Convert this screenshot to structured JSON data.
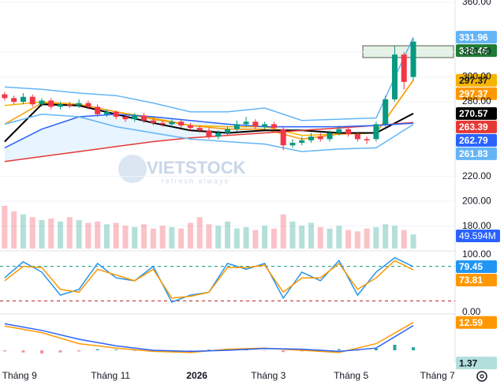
{
  "chart_data": [
    {
      "type": "candlestick",
      "xlim": [
        -0.5,
        48.5
      ],
      "xticks": [
        {
          "value": 1.6,
          "label": "Tháng 9"
        },
        {
          "value": 11.4,
          "label": "Tháng 11"
        },
        {
          "value": 20.7,
          "label": "2026"
        },
        {
          "value": 28.4,
          "label": "Tháng 3"
        },
        {
          "value": 37.3,
          "label": "Tháng 5"
        },
        {
          "value": 46.6,
          "label": "Tháng 7"
        }
      ],
      "ylim": [
        162,
        360
      ],
      "yticks": [
        {
          "value": 360,
          "label": "360.00"
        },
        {
          "value": 320,
          "label": "320.00"
        },
        {
          "value": 300,
          "label": "300.00"
        },
        {
          "value": 280,
          "label": "280.00"
        },
        {
          "value": 220,
          "label": "220.00"
        },
        {
          "value": 200,
          "label": "200.00"
        },
        {
          "value": 180,
          "label": "180.00"
        }
      ],
      "grid": true,
      "up_color": "#089981",
      "down_color": "#f23645",
      "last_color": "#1e7b34",
      "open": [
        286,
        283,
        280,
        284,
        278,
        281,
        276,
        278,
        277,
        279,
        276,
        270,
        272,
        268,
        266,
        269,
        265,
        263,
        262,
        264,
        261,
        259,
        257,
        252,
        255,
        258,
        262,
        264,
        260,
        262,
        258,
        245,
        247,
        249,
        252,
        250,
        255,
        258,
        254,
        250,
        250,
        262,
        282,
        318,
        300
      ],
      "high": [
        288,
        285,
        287,
        286,
        283,
        283,
        280,
        280,
        282,
        281,
        278,
        274,
        273,
        270,
        271,
        271,
        267,
        265,
        266,
        266,
        263,
        261,
        259,
        257,
        260,
        265,
        268,
        266,
        264,
        264,
        260,
        250,
        252,
        255,
        255,
        257,
        261,
        260,
        256,
        252,
        264,
        285,
        325,
        320,
        331
      ],
      "low": [
        281,
        278,
        278,
        276,
        276,
        274,
        274,
        275,
        275,
        274,
        268,
        268,
        266,
        264,
        264,
        263,
        261,
        260,
        260,
        259,
        257,
        255,
        250,
        250,
        253,
        256,
        260,
        258,
        258,
        257,
        241,
        243,
        245,
        247,
        248,
        248,
        253,
        252,
        248,
        246,
        248,
        260,
        280,
        290,
        297
      ],
      "close": [
        283,
        280,
        284,
        278,
        281,
        276,
        278,
        277,
        279,
        276,
        270,
        272,
        268,
        266,
        269,
        265,
        263,
        262,
        264,
        261,
        259,
        257,
        252,
        255,
        258,
        262,
        264,
        260,
        262,
        259,
        245,
        247,
        249,
        252,
        250,
        255,
        258,
        254,
        250,
        249,
        262,
        282,
        318,
        296,
        328.45
      ],
      "overlays": {
        "x": [
          0,
          4,
          8,
          12,
          16,
          20,
          24,
          28,
          32,
          36,
          40,
          44
        ],
        "fill_between": [
          4,
          5
        ],
        "fill_color": "rgba(33,150,243,0.10)",
        "series": [
          {
            "color": "#64b5f6",
            "values": [
              292,
              290,
              287,
              285,
              279,
              272,
              272,
              275,
              265,
              266,
              267,
              331.96
            ],
            "badge": true
          },
          {
            "color": "#f5b400",
            "values": [
              277,
              280,
              278,
              272,
              267,
              261,
              260,
              260,
              253,
              254,
              255,
              297.37
            ],
            "badge": true
          },
          {
            "color": "#ff9800",
            "values": [
              262,
              279,
              278,
              272,
              266,
              261,
              258,
              258,
              250,
              254,
              255,
              297.37
            ],
            "badge": true
          },
          {
            "color": "#000000",
            "values": [
              248,
              278,
              277,
              270,
              263,
              257,
              255,
              257,
              257,
              255,
              255,
              270.57
            ],
            "badge": true
          },
          {
            "color": "#e53935",
            "values": [
              232,
              236,
              240,
              244,
              248,
              251,
              253,
              255,
              257,
              259,
              261,
              263.39
            ],
            "badge": true
          },
          {
            "color": "#2962ff",
            "values": [
              243,
              258,
              268,
              270,
              268,
              265,
              262,
              260,
              260,
              260,
              261,
              262.79
            ],
            "badge": true
          },
          {
            "color": "#64b5f6",
            "values": [
              262,
              270,
              268,
              260,
              255,
              250,
              248,
              246,
              240,
              242,
              243,
              261.83
            ],
            "badge": true
          }
        ]
      },
      "volume": {
        "ylim": [
          0,
          180
        ],
        "color": "#2962ff",
        "values": [
          150,
          130,
          120,
          110,
          100,
          105,
          95,
          110,
          100,
          90,
          95,
          85,
          90,
          80,
          75,
          85,
          70,
          80,
          75,
          70,
          90,
          110,
          85,
          80,
          95,
          70,
          75,
          65,
          80,
          70,
          120,
          95,
          80,
          90,
          75,
          70,
          80,
          65,
          60,
          70,
          75,
          85,
          80,
          65,
          49.594
        ],
        "value_labels": [
          null,
          null,
          null,
          null,
          null,
          null,
          null,
          null,
          null,
          null,
          null,
          null,
          null,
          null,
          null,
          null,
          null,
          null,
          null,
          null,
          null,
          null,
          null,
          null,
          null,
          null,
          null,
          null,
          null,
          null,
          null,
          null,
          null,
          null,
          null,
          null,
          null,
          null,
          null,
          null,
          null,
          null,
          null,
          null,
          "49.594M"
        ]
      },
      "watermark": "VIETSTOCK",
      "watermark_sub": "refresh always"
    },
    {
      "type": "line",
      "ylim": [
        0,
        100
      ],
      "yticks": [
        {
          "value": 100,
          "label": "100.00"
        },
        {
          "value": 0,
          "label": "0.00"
        }
      ],
      "levels": [
        80,
        20
      ],
      "level_colors": [
        "#089981",
        "#b71c1c"
      ],
      "x": [
        0,
        2,
        4,
        6,
        8,
        10,
        12,
        14,
        16,
        18,
        20,
        22,
        24,
        26,
        28,
        30,
        32,
        34,
        36,
        38,
        40,
        42,
        44
      ],
      "series": [
        {
          "color": "#2196f3",
          "values": [
            60,
            88,
            70,
            30,
            40,
            85,
            60,
            55,
            80,
            18,
            30,
            35,
            85,
            75,
            85,
            25,
            70,
            55,
            90,
            30,
            70,
            95,
            79.45
          ],
          "badge": true
        },
        {
          "color": "#ff9800",
          "values": [
            55,
            80,
            78,
            40,
            35,
            75,
            65,
            55,
            75,
            25,
            28,
            35,
            78,
            78,
            82,
            35,
            60,
            60,
            85,
            40,
            60,
            90,
            73.81
          ],
          "badge": true
        }
      ]
    },
    {
      "type": "line",
      "ylim": [
        -5,
        15
      ],
      "x": [
        0,
        4,
        8,
        12,
        16,
        20,
        24,
        28,
        32,
        36,
        40,
        44
      ],
      "series": [
        {
          "color": "#ff9800",
          "values": [
            11,
            8,
            3,
            1,
            -0.5,
            -1,
            0.5,
            1,
            0,
            -1,
            3,
            12.59
          ],
          "badge": true
        },
        {
          "color": "#2962ff",
          "values": [
            12,
            9,
            5,
            2,
            0,
            -0.5,
            0,
            0.8,
            0.5,
            -0.5,
            1,
            11.22
          ],
          "badge": false
        }
      ],
      "histogram": {
        "x": [
          0,
          2,
          4,
          6,
          8,
          10,
          12,
          14,
          16,
          18,
          20,
          22,
          24,
          26,
          28,
          30,
          32,
          34,
          36,
          38,
          40,
          42,
          44
        ],
        "values": [
          -0.5,
          -1,
          -1.5,
          -1,
          -0.5,
          0.5,
          0.3,
          -0.3,
          -0.5,
          -0.8,
          -0.3,
          0.3,
          0.6,
          0.2,
          -0.2,
          -0.8,
          -0.5,
          0.3,
          0.5,
          -0.3,
          0.8,
          2.5,
          1.37
        ],
        "pos_color": "#26a69a",
        "neg_color": "#ef9a9a",
        "badge_color": "#b2dfdb"
      }
    }
  ]
}
